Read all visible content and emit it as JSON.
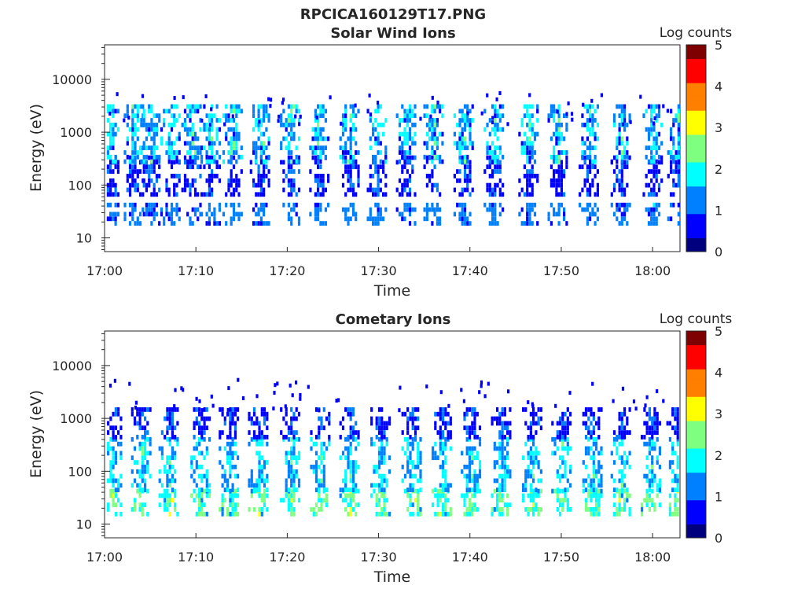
{
  "figure": {
    "title": "RPCICA160129T17.PNG"
  },
  "colormap": [
    "#00007f",
    "#0000ff",
    "#007fff",
    "#00ffff",
    "#7fff7f",
    "#ffff00",
    "#ff7f00",
    "#ff0000",
    "#7f0000"
  ],
  "chart_data": [
    {
      "type": "heatmap",
      "title": "Solar Wind Ions",
      "xlabel": "Time",
      "ylabel": "Energy (eV)",
      "yscale": "log",
      "xticks": [
        "17:00",
        "17:10",
        "17:20",
        "17:30",
        "17:40",
        "17:50",
        "18:00"
      ],
      "xtick_minutes": [
        0,
        10,
        20,
        30,
        40,
        50,
        60
      ],
      "yticks": [
        "10",
        "100",
        "1000",
        "10000"
      ],
      "ytick_values": [
        10,
        100,
        1000,
        10000
      ],
      "xlim_minutes": [
        0,
        63
      ],
      "ylim_eV": [
        5.5,
        45000
      ],
      "colorbar": {
        "label": "Log counts",
        "range": [
          0,
          5
        ],
        "ticks": [
          "0",
          "1",
          "2",
          "3",
          "4",
          "5"
        ]
      },
      "bands": [
        {
          "energy_eV": [
            17,
            40
          ],
          "log_counts": [
            0.8,
            1.6
          ]
        },
        {
          "energy_eV": [
            60,
            300
          ],
          "log_counts": [
            0.5,
            1.2
          ]
        },
        {
          "energy_eV": [
            250,
            2800
          ],
          "log_counts": [
            0.8,
            2.4
          ]
        }
      ],
      "bursts_minutes": [
        0.5,
        3.2,
        5,
        7.2,
        9.5,
        11.6,
        14,
        17,
        20.3,
        23.5,
        26.8,
        29.8,
        33,
        36,
        39.3,
        42.6,
        46.4,
        49.6,
        53,
        56.5,
        60,
        62.7
      ]
    },
    {
      "type": "heatmap",
      "title": "Cometary Ions",
      "xlabel": "Time",
      "ylabel": "Energy (eV)",
      "yscale": "log",
      "xticks": [
        "17:00",
        "17:10",
        "17:20",
        "17:30",
        "17:40",
        "17:50",
        "18:00"
      ],
      "xtick_minutes": [
        0,
        10,
        20,
        30,
        40,
        50,
        60
      ],
      "yticks": [
        "10",
        "100",
        "1000",
        "10000"
      ],
      "ytick_values": [
        10,
        100,
        1000,
        10000
      ],
      "xlim_minutes": [
        0,
        63
      ],
      "ylim_eV": [
        5.5,
        45000
      ],
      "colorbar": {
        "label": "Log counts",
        "range": [
          0,
          5
        ],
        "ticks": [
          "0",
          "1",
          "2",
          "3",
          "4",
          "5"
        ]
      },
      "bands": [
        {
          "energy_eV": [
            14,
            40
          ],
          "log_counts": [
            1.5,
            3.0
          ]
        },
        {
          "energy_eV": [
            40,
            400
          ],
          "log_counts": [
            1.0,
            2.3
          ]
        },
        {
          "energy_eV": [
            400,
            1500
          ],
          "log_counts": [
            0.5,
            1.2
          ]
        }
      ],
      "bursts_minutes": [
        0.8,
        4,
        7,
        10.5,
        13.6,
        16.8,
        20.3,
        23.6,
        26.8,
        30.2,
        33.6,
        36.9,
        40.1,
        43.4,
        46.8,
        50,
        53.4,
        56.5,
        59.8,
        62.6
      ]
    }
  ]
}
